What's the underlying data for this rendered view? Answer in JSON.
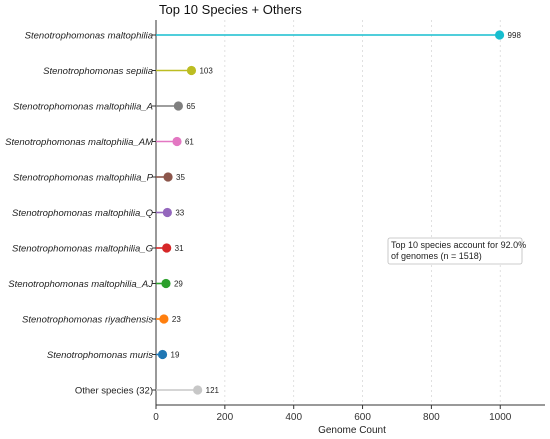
{
  "chart_data": {
    "type": "lollipop",
    "orientation": "horizontal",
    "title": "Top 10 Species + Others",
    "xlabel": "Genome Count",
    "ylabel": "",
    "xlim": [
      0,
      1130
    ],
    "xticks": [
      0,
      200,
      400,
      600,
      800,
      1000
    ],
    "grid": "vertical dotted",
    "categories": [
      "Stenotrophomonas maltophilia",
      "Stenotrophomonas sepilia",
      "Stenotrophomonas maltophilia_A",
      "Stenotrophomonas maltophilia_AM",
      "Stenotrophomonas maltophilia_P",
      "Stenotrophomonas maltophilia_Q",
      "Stenotrophomonas maltophilia_G",
      "Stenotrophomonas maltophilia_AJ",
      "Stenotrophomonas riyadhensis",
      "Stenotrophomonas muris",
      "Other species (32)"
    ],
    "values": [
      998,
      103,
      65,
      61,
      35,
      33,
      31,
      29,
      23,
      19,
      121
    ],
    "italic": [
      true,
      true,
      true,
      true,
      true,
      true,
      true,
      true,
      true,
      true,
      false
    ],
    "colors": [
      "#17becf",
      "#bcbd22",
      "#7f7f7f",
      "#e377c2",
      "#8c564b",
      "#9467bd",
      "#d62728",
      "#2ca02c",
      "#ff7f0e",
      "#1f77b4",
      "#c7c7c7"
    ],
    "annotation": "Top 10 species account for 92.0%\nof genomes (n = 1518)"
  }
}
